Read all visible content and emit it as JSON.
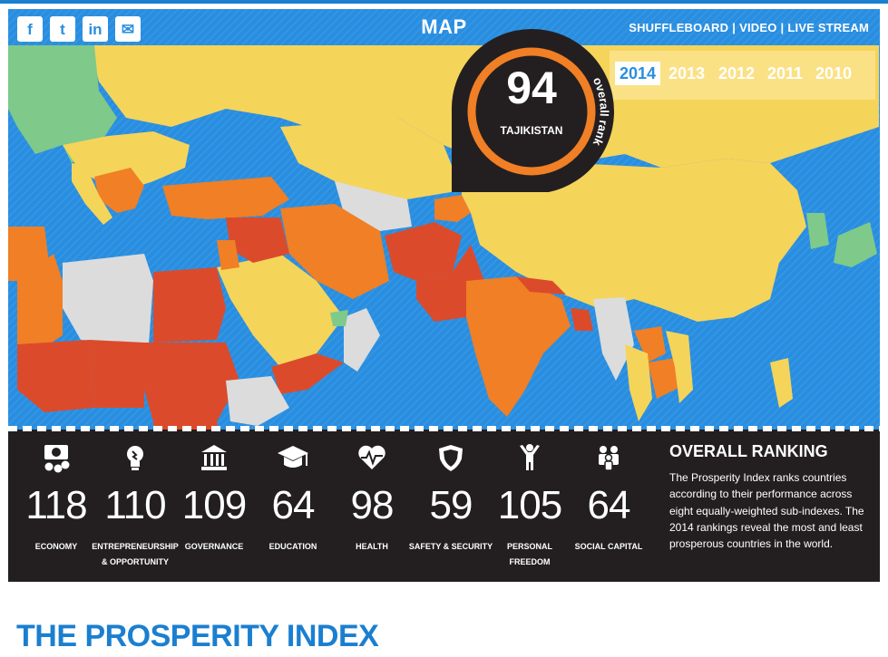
{
  "header": {
    "title": "MAP",
    "social": [
      {
        "icon": "facebook-icon",
        "glyph": "f"
      },
      {
        "icon": "twitter-icon",
        "glyph": "t"
      },
      {
        "icon": "linkedin-icon",
        "glyph": "in"
      },
      {
        "icon": "email-icon",
        "glyph": "✉"
      }
    ],
    "nav": {
      "shuffleboard": "SHUFFLEBOARD",
      "video": "VIDEO",
      "live_stream": "LIVE STREAM",
      "separator": "|"
    }
  },
  "years": {
    "items": [
      "2014",
      "2013",
      "2012",
      "2011",
      "2010"
    ],
    "selected": "2014"
  },
  "rank_badge": {
    "rank": "94",
    "country": "TAJIKISTAN",
    "caption": "overall rank"
  },
  "subindexes": [
    {
      "icon": "money-icon",
      "value": "118",
      "label": "ECONOMY"
    },
    {
      "icon": "lightbulb-icon",
      "value": "110",
      "label": "ENTREPRENEURSHIP & OPPORTUNITY"
    },
    {
      "icon": "government-building-icon",
      "value": "109",
      "label": "GOVERNANCE"
    },
    {
      "icon": "graduation-cap-icon",
      "value": "64",
      "label": "EDUCATION"
    },
    {
      "icon": "heart-pulse-icon",
      "value": "98",
      "label": "HEALTH"
    },
    {
      "icon": "shield-icon",
      "value": "59",
      "label": "SAFETY & SECURITY"
    },
    {
      "icon": "person-arms-up-icon",
      "value": "105",
      "label": "PERSONAL FREEDOM"
    },
    {
      "icon": "people-group-icon",
      "value": "64",
      "label": "SOCIAL CAPITAL"
    }
  ],
  "overall": {
    "title": "OVERALL RANKING",
    "text": "The Prosperity Index ranks countries according to their performance across eight equally-weighted sub-indexes. The 2014 rankings reveal the most and least prosperous countries in the world."
  },
  "page_heading": "THE PROSPERITY INDEX",
  "colors": {
    "accent": "#1b7fd0",
    "ocean": "#2a8ee0",
    "high": "#7fc98a",
    "upper_mid": "#f5d45a",
    "lower_mid": "#f07f25",
    "low": "#db4b2b",
    "no_data": "#dcdcdc",
    "panel": "#231f20"
  }
}
